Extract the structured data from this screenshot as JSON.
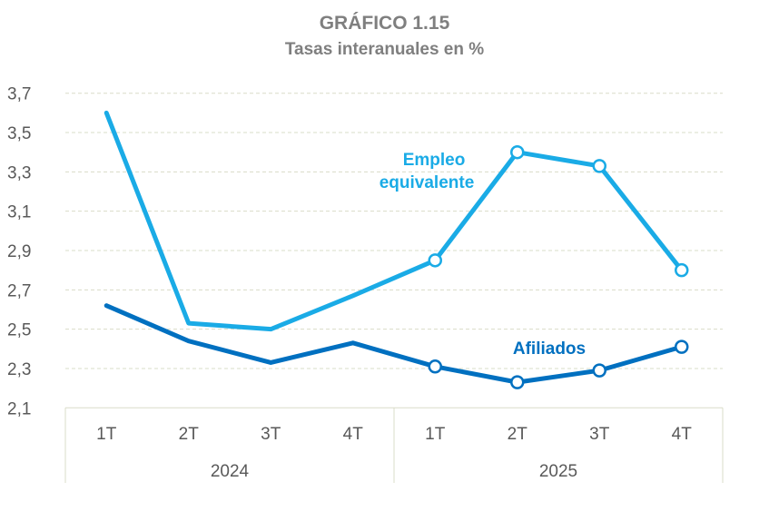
{
  "chart_data": {
    "type": "line",
    "title": "GRÁFICO 1.15",
    "subtitle": "Tasas interanuales en %",
    "categories": [
      "1T",
      "2T",
      "3T",
      "4T",
      "1T",
      "2T",
      "3T",
      "4T"
    ],
    "groups": [
      {
        "label": "2024",
        "span": 4
      },
      {
        "label": "2025",
        "span": 4
      }
    ],
    "ylim": [
      2.1,
      3.7
    ],
    "yticks": [
      "2,1",
      "2,3",
      "2,5",
      "2,7",
      "2,9",
      "3,1",
      "3,3",
      "3,5",
      "3,7"
    ],
    "grid": true,
    "series": [
      {
        "name": "Empleo equivalente",
        "label_lines": [
          "Empleo",
          "equivalente"
        ],
        "color": "#1AABE6",
        "values": [
          3.6,
          2.53,
          2.5,
          2.67,
          2.85,
          3.4,
          3.33,
          2.8
        ],
        "markers": [
          false,
          false,
          false,
          false,
          true,
          true,
          true,
          true
        ]
      },
      {
        "name": "Afiliados",
        "label_lines": [
          "Afiliados"
        ],
        "color": "#0070C0",
        "values": [
          2.62,
          2.44,
          2.33,
          2.43,
          2.31,
          2.23,
          2.29,
          2.41
        ],
        "markers": [
          false,
          false,
          false,
          false,
          true,
          true,
          true,
          true
        ]
      }
    ]
  }
}
